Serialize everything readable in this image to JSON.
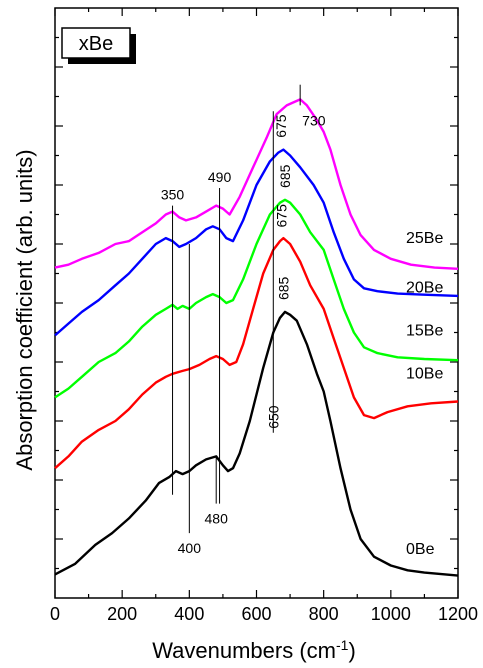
{
  "chart_data": {
    "type": "line",
    "inset_label": "xBe",
    "xlabel_main": "Wavenumbers (cm",
    "xlabel_sup": "-1",
    "xlabel_tail": ")",
    "ylabel": "Absorption coefficient (arb. units)",
    "xlim": [
      0,
      1200
    ],
    "ylim": [
      0,
      1
    ],
    "x_ticks": [
      "0",
      "200",
      "400",
      "600",
      "800",
      "1000",
      "1200"
    ],
    "grid": false,
    "series": [
      {
        "name": "0Be",
        "color": "#000000",
        "points": [
          [
            0,
            0.04
          ],
          [
            60,
            0.058
          ],
          [
            120,
            0.09
          ],
          [
            170,
            0.11
          ],
          [
            220,
            0.135
          ],
          [
            270,
            0.165
          ],
          [
            310,
            0.195
          ],
          [
            340,
            0.205
          ],
          [
            360,
            0.215
          ],
          [
            380,
            0.21
          ],
          [
            400,
            0.215
          ],
          [
            420,
            0.225
          ],
          [
            450,
            0.235
          ],
          [
            480,
            0.24
          ],
          [
            500,
            0.225
          ],
          [
            515,
            0.215
          ],
          [
            530,
            0.22
          ],
          [
            550,
            0.245
          ],
          [
            580,
            0.3
          ],
          [
            620,
            0.39
          ],
          [
            650,
            0.45
          ],
          [
            670,
            0.475
          ],
          [
            685,
            0.485
          ],
          [
            700,
            0.48
          ],
          [
            720,
            0.47
          ],
          [
            750,
            0.43
          ],
          [
            780,
            0.38
          ],
          [
            800,
            0.35
          ],
          [
            820,
            0.3
          ],
          [
            850,
            0.22
          ],
          [
            880,
            0.15
          ],
          [
            910,
            0.1
          ],
          [
            950,
            0.07
          ],
          [
            1000,
            0.055
          ],
          [
            1050,
            0.047
          ],
          [
            1100,
            0.043
          ],
          [
            1200,
            0.038
          ]
        ]
      },
      {
        "name": "10Be",
        "color": "#ff0000",
        "points": [
          [
            0,
            0.22
          ],
          [
            40,
            0.24
          ],
          [
            80,
            0.265
          ],
          [
            130,
            0.285
          ],
          [
            180,
            0.3
          ],
          [
            220,
            0.32
          ],
          [
            260,
            0.345
          ],
          [
            300,
            0.365
          ],
          [
            330,
            0.375
          ],
          [
            350,
            0.38
          ],
          [
            380,
            0.385
          ],
          [
            400,
            0.388
          ],
          [
            430,
            0.395
          ],
          [
            460,
            0.405
          ],
          [
            480,
            0.41
          ],
          [
            500,
            0.405
          ],
          [
            520,
            0.395
          ],
          [
            540,
            0.4
          ],
          [
            560,
            0.43
          ],
          [
            590,
            0.49
          ],
          [
            620,
            0.55
          ],
          [
            650,
            0.59
          ],
          [
            670,
            0.605
          ],
          [
            680,
            0.61
          ],
          [
            700,
            0.6
          ],
          [
            730,
            0.57
          ],
          [
            760,
            0.53
          ],
          [
            800,
            0.49
          ],
          [
            830,
            0.44
          ],
          [
            860,
            0.39
          ],
          [
            890,
            0.34
          ],
          [
            920,
            0.31
          ],
          [
            950,
            0.305
          ],
          [
            990,
            0.315
          ],
          [
            1050,
            0.325
          ],
          [
            1120,
            0.33
          ],
          [
            1200,
            0.333
          ]
        ]
      },
      {
        "name": "15Be",
        "color": "#00ff00",
        "points": [
          [
            0,
            0.34
          ],
          [
            40,
            0.355
          ],
          [
            80,
            0.375
          ],
          [
            130,
            0.4
          ],
          [
            180,
            0.415
          ],
          [
            220,
            0.435
          ],
          [
            260,
            0.46
          ],
          [
            300,
            0.48
          ],
          [
            330,
            0.49
          ],
          [
            350,
            0.497
          ],
          [
            365,
            0.49
          ],
          [
            380,
            0.495
          ],
          [
            400,
            0.49
          ],
          [
            420,
            0.5
          ],
          [
            450,
            0.51
          ],
          [
            470,
            0.515
          ],
          [
            490,
            0.51
          ],
          [
            510,
            0.5
          ],
          [
            530,
            0.505
          ],
          [
            560,
            0.54
          ],
          [
            600,
            0.6
          ],
          [
            640,
            0.65
          ],
          [
            670,
            0.67
          ],
          [
            685,
            0.675
          ],
          [
            700,
            0.67
          ],
          [
            730,
            0.65
          ],
          [
            760,
            0.62
          ],
          [
            800,
            0.59
          ],
          [
            830,
            0.54
          ],
          [
            860,
            0.49
          ],
          [
            890,
            0.45
          ],
          [
            920,
            0.425
          ],
          [
            960,
            0.415
          ],
          [
            1020,
            0.408
          ],
          [
            1100,
            0.405
          ],
          [
            1200,
            0.403
          ]
        ]
      },
      {
        "name": "20Be",
        "color": "#0000ff",
        "points": [
          [
            0,
            0.445
          ],
          [
            40,
            0.465
          ],
          [
            80,
            0.485
          ],
          [
            130,
            0.505
          ],
          [
            180,
            0.53
          ],
          [
            220,
            0.55
          ],
          [
            260,
            0.575
          ],
          [
            300,
            0.6
          ],
          [
            330,
            0.61
          ],
          [
            350,
            0.605
          ],
          [
            370,
            0.595
          ],
          [
            390,
            0.6
          ],
          [
            420,
            0.61
          ],
          [
            450,
            0.625
          ],
          [
            470,
            0.63
          ],
          [
            490,
            0.625
          ],
          [
            510,
            0.61
          ],
          [
            530,
            0.605
          ],
          [
            560,
            0.64
          ],
          [
            600,
            0.7
          ],
          [
            640,
            0.74
          ],
          [
            665,
            0.755
          ],
          [
            680,
            0.76
          ],
          [
            700,
            0.75
          ],
          [
            730,
            0.73
          ],
          [
            770,
            0.7
          ],
          [
            800,
            0.67
          ],
          [
            830,
            0.62
          ],
          [
            860,
            0.575
          ],
          [
            890,
            0.54
          ],
          [
            920,
            0.525
          ],
          [
            960,
            0.52
          ],
          [
            1020,
            0.516
          ],
          [
            1100,
            0.514
          ],
          [
            1200,
            0.512
          ]
        ]
      },
      {
        "name": "25Be",
        "color": "#ff00ff",
        "points": [
          [
            0,
            0.56
          ],
          [
            40,
            0.565
          ],
          [
            80,
            0.575
          ],
          [
            130,
            0.585
          ],
          [
            180,
            0.6
          ],
          [
            220,
            0.605
          ],
          [
            260,
            0.62
          ],
          [
            300,
            0.635
          ],
          [
            330,
            0.65
          ],
          [
            350,
            0.655
          ],
          [
            370,
            0.645
          ],
          [
            390,
            0.64
          ],
          [
            420,
            0.645
          ],
          [
            450,
            0.655
          ],
          [
            480,
            0.665
          ],
          [
            500,
            0.66
          ],
          [
            520,
            0.65
          ],
          [
            550,
            0.68
          ],
          [
            590,
            0.73
          ],
          [
            630,
            0.78
          ],
          [
            660,
            0.82
          ],
          [
            690,
            0.835
          ],
          [
            710,
            0.84
          ],
          [
            730,
            0.845
          ],
          [
            750,
            0.835
          ],
          [
            780,
            0.81
          ],
          [
            800,
            0.79
          ],
          [
            820,
            0.76
          ],
          [
            850,
            0.7
          ],
          [
            880,
            0.65
          ],
          [
            910,
            0.615
          ],
          [
            950,
            0.59
          ],
          [
            1000,
            0.575
          ],
          [
            1060,
            0.565
          ],
          [
            1130,
            0.56
          ],
          [
            1200,
            0.558
          ]
        ]
      }
    ],
    "vlines": [
      {
        "x": 350,
        "y_top": 0.665,
        "y_bottom": 0.175,
        "label": "350",
        "label_pos": "top"
      },
      {
        "x": 400,
        "y_top": 0.6,
        "y_bottom": 0.11,
        "label": "400",
        "label_pos": "bottom"
      },
      {
        "x": 490,
        "y_top": 0.695,
        "y_bottom": 0.16,
        "label": "490",
        "label_pos": "top"
      },
      {
        "x": 480,
        "y_top": 0.24,
        "y_bottom": 0.16,
        "label": "480",
        "label_pos": "bottom"
      },
      {
        "x": 650,
        "y_top": 0.825,
        "y_bottom": 0.28,
        "label": "650",
        "label_pos": "bottom"
      },
      {
        "x": 730,
        "y_top": 0.87,
        "y_bottom": 0.835,
        "label": "730",
        "label_pos": "top-right"
      }
    ],
    "peak_labels": [
      {
        "text": "685",
        "x": 680,
        "y": 0.505,
        "rotated": true
      },
      {
        "text": "675",
        "x": 675,
        "y": 0.628,
        "rotated": true
      },
      {
        "text": "685",
        "x": 685,
        "y": 0.695,
        "rotated": true
      },
      {
        "text": "675",
        "x": 673,
        "y": 0.78,
        "rotated": true
      }
    ],
    "series_labels": [
      {
        "text": "25Be",
        "y": 0.602
      },
      {
        "text": "20Be",
        "y": 0.518
      },
      {
        "text": "15Be",
        "y": 0.445
      },
      {
        "text": "10Be",
        "y": 0.372
      },
      {
        "text": "0Be",
        "y": 0.075
      }
    ]
  }
}
